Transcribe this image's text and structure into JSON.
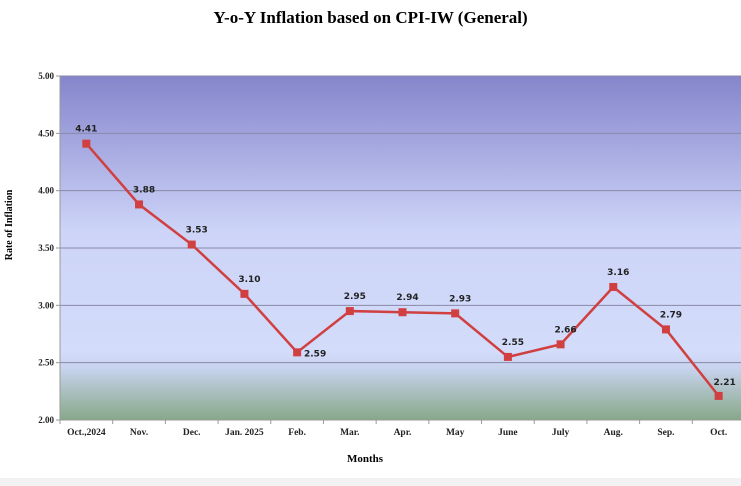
{
  "chart_data": {
    "type": "line",
    "title": "Y-o-Y Inflation based on CPI-IW (General)",
    "xlabel": "Months",
    "ylabel": "Rate of Inflation",
    "ylim": [
      2.0,
      5.0
    ],
    "yticks": [
      "2.00",
      "2.50",
      "3.00",
      "3.50",
      "4.00",
      "4.50",
      "5.00"
    ],
    "grid": true,
    "categories": [
      "Oct.,2024",
      "Nov.",
      "Dec.",
      "Jan. 2025",
      "Feb.",
      "Mar.",
      "Apr.",
      "May",
      "June",
      "July",
      "Aug.",
      "Sep.",
      "Oct."
    ],
    "series": [
      {
        "name": "Y-o-Y Inflation",
        "color": "#d04040",
        "values": [
          4.41,
          3.88,
          3.53,
          3.1,
          2.59,
          2.95,
          2.94,
          2.93,
          2.55,
          2.66,
          3.16,
          2.79,
          2.21
        ],
        "labels": [
          "4.41",
          "3.88",
          "3.53",
          "3.10",
          "2.59",
          "2.95",
          "2.94",
          "2.93",
          "2.55",
          "2.66",
          "3.16",
          "2.79",
          "2.21"
        ]
      }
    ]
  }
}
